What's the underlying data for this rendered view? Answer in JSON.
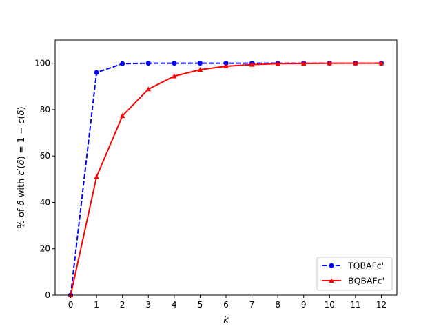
{
  "chart_data": {
    "type": "line",
    "title": "",
    "xlabel": "k",
    "ylabel_parts": {
      "pre": "% of ",
      "delta1": "δ",
      "mid": " with ",
      "c1": "c",
      "prime": "′",
      "paren_open": "(",
      "delta2": "δ",
      "paren_close": ")",
      "eq": " = 1 − ",
      "c2": "c",
      "paren_open2": "(",
      "delta3": "δ",
      "paren_close2": ")"
    },
    "x": [
      0,
      1,
      2,
      3,
      4,
      5,
      6,
      7,
      8,
      9,
      10,
      11,
      12
    ],
    "xlim": [
      -0.6,
      12.6
    ],
    "ylim": [
      0,
      110
    ],
    "xticks": [
      "0",
      "1",
      "2",
      "3",
      "4",
      "5",
      "6",
      "7",
      "8",
      "9",
      "10",
      "11",
      "12"
    ],
    "yticks": [
      "0",
      "20",
      "40",
      "60",
      "80",
      "100"
    ],
    "grid": false,
    "legend_position": "lower-right",
    "series": [
      {
        "name": "TQBAFc'",
        "color": "#0000ff",
        "line_style": "dashed",
        "marker": "circle",
        "values": [
          0,
          96,
          99.8,
          100,
          100,
          100,
          100,
          100,
          100,
          100,
          100,
          100,
          100
        ]
      },
      {
        "name": "BQBAFc'",
        "color": "#ff0000",
        "line_style": "solid",
        "marker": "triangle",
        "values": [
          0,
          51,
          77.3,
          88.8,
          94.4,
          97.2,
          98.7,
          99.4,
          99.8,
          99.9,
          100,
          100,
          100
        ]
      }
    ]
  }
}
